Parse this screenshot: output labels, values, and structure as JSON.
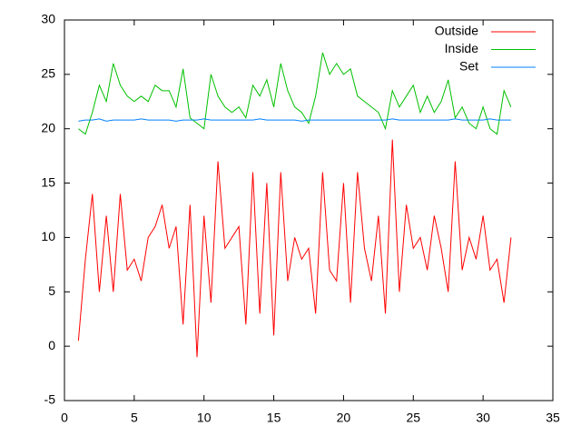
{
  "chart_data": {
    "type": "line",
    "x": [
      1,
      1.5,
      2,
      2.5,
      3,
      3.5,
      4,
      4.5,
      5,
      5.5,
      6,
      6.5,
      7,
      7.5,
      8,
      8.5,
      9,
      9.5,
      10,
      10.5,
      11,
      11.5,
      12,
      12.5,
      13,
      13.5,
      14,
      14.5,
      15,
      15.5,
      16,
      16.5,
      17,
      17.5,
      18,
      18.5,
      19,
      19.5,
      20,
      20.5,
      21,
      21.5,
      22,
      22.5,
      23,
      23.5,
      24,
      24.5,
      25,
      25.5,
      26,
      26.5,
      27,
      27.5,
      28,
      28.5,
      29,
      29.5,
      30,
      30.5,
      31,
      31.5,
      32
    ],
    "series": [
      {
        "name": "Outside",
        "color": "#ff0000",
        "values": [
          0.5,
          8,
          14,
          5,
          12,
          5,
          14,
          7,
          8,
          6,
          10,
          11,
          13,
          9,
          11,
          2,
          13,
          -1,
          12,
          4,
          17,
          9,
          10,
          11,
          2,
          16,
          3,
          15,
          1,
          16,
          6,
          10,
          8,
          9,
          3,
          16,
          7,
          6,
          15,
          4,
          16,
          9,
          6,
          12,
          3,
          19,
          5,
          13,
          9,
          10,
          7,
          12,
          9,
          5,
          17,
          7,
          10,
          8,
          12,
          7,
          8,
          4,
          10
        ]
      },
      {
        "name": "Inside",
        "color": "#00c000",
        "values": [
          20,
          19.5,
          21.5,
          24,
          22.5,
          26,
          24,
          23,
          22.5,
          23,
          22.5,
          24,
          23.5,
          23.5,
          22,
          25.5,
          21,
          20.5,
          20,
          25,
          23,
          22,
          21.5,
          22,
          21,
          24,
          23,
          24.5,
          22,
          26,
          23.5,
          22,
          21.5,
          20.5,
          23,
          27,
          25,
          26,
          25,
          25.5,
          23,
          22.5,
          22,
          21.5,
          20,
          23.5,
          22,
          23,
          24,
          21.5,
          23,
          21.5,
          22.5,
          24.5,
          21,
          22,
          20.5,
          20,
          22,
          20,
          19.5,
          23.5,
          22
        ]
      },
      {
        "name": "Set",
        "color": "#0080ff",
        "values": [
          20.7,
          20.8,
          20.8,
          20.9,
          20.7,
          20.8,
          20.8,
          20.8,
          20.8,
          20.9,
          20.8,
          20.8,
          20.8,
          20.8,
          20.7,
          20.8,
          20.8,
          20.8,
          20.9,
          20.8,
          20.8,
          20.8,
          20.8,
          20.8,
          20.8,
          20.8,
          20.9,
          20.8,
          20.8,
          20.8,
          20.8,
          20.8,
          20.7,
          20.8,
          20.8,
          20.8,
          20.8,
          20.8,
          20.8,
          20.8,
          20.8,
          20.8,
          20.8,
          20.8,
          20.8,
          20.9,
          20.8,
          20.8,
          20.8,
          20.8,
          20.8,
          20.8,
          20.8,
          20.8,
          20.9,
          20.8,
          20.8,
          20.8,
          20.8,
          20.9,
          20.8,
          20.8,
          20.8
        ]
      }
    ],
    "xlim": [
      0,
      35
    ],
    "xticks": [
      0,
      5,
      10,
      15,
      20,
      25,
      30,
      35
    ],
    "ylim": [
      -5,
      30
    ],
    "yticks": [
      -5,
      0,
      5,
      10,
      15,
      20,
      25,
      30
    ],
    "grid": false,
    "legend": "top-right"
  }
}
